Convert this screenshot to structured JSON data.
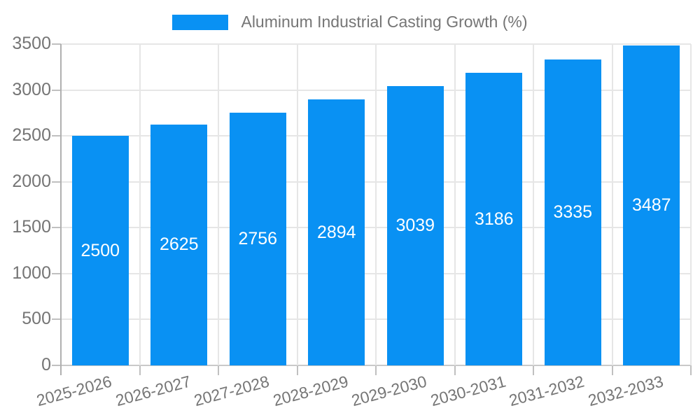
{
  "legend": {
    "label": "Aluminum Industrial Casting Growth (%)"
  },
  "chart_data": {
    "type": "bar",
    "title": "Aluminum Industrial Casting Growth (%)",
    "categories": [
      "2025-2026",
      "2026-2027",
      "2027-2028",
      "2028-2029",
      "2029-2030",
      "2030-2031",
      "2031-2032",
      "2032-2033"
    ],
    "series": [
      {
        "name": "Aluminum Industrial Casting Growth (%)",
        "values": [
          2500,
          2625,
          2756,
          2894,
          3039,
          3186,
          3335,
          3487
        ]
      }
    ],
    "value_labels": [
      "2500",
      "2625",
      "2756",
      "2894",
      "3039",
      "3186",
      "3335",
      "3487"
    ],
    "xlabel": "",
    "ylabel": "",
    "ylim": [
      0,
      3500
    ],
    "yticks": [
      0,
      500,
      1000,
      1500,
      2000,
      2500,
      3000,
      3500
    ],
    "ytick_labels": [
      "0",
      "500",
      "1000",
      "1500",
      "2000",
      "2500",
      "3000",
      "3500"
    ],
    "grid": true,
    "legend_position": "top-center",
    "x_label_rotation_deg": -15,
    "colors": {
      "bar": "#0991f3",
      "tick_label": "#757575",
      "value_label": "#ffffff",
      "grid_line": "#e6e6e6",
      "axis_line": "#b0b0b0",
      "tick_mark": "#c0c0c0",
      "background": "#ffffff"
    }
  }
}
